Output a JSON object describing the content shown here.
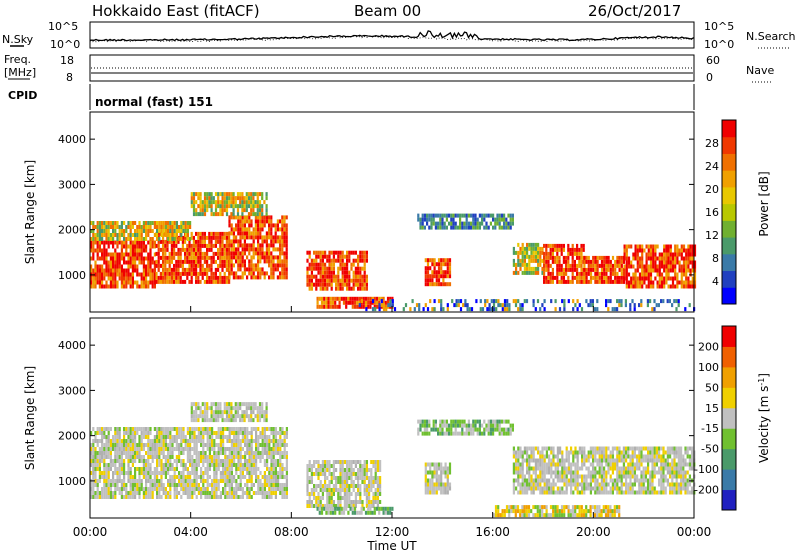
{
  "header": {
    "station": "Hokkaido East (fitACF)",
    "beam": "Beam 00",
    "date": "26/Oct/2017"
  },
  "strip": {
    "nsky_label": "N.Sky",
    "nsearch_label": "N.Search",
    "nsky_ticks": [
      "10^5",
      "10^0"
    ],
    "nsearch_ticks": [
      "10^5",
      "10^0"
    ],
    "freq_label_top": "Freq.",
    "freq_label_unit": "[MHz]",
    "freq_ticks": [
      "18",
      "8"
    ],
    "nave_label": "Nave",
    "nave_ticks": [
      "60",
      "0"
    ],
    "cpid_label": "CPID",
    "cpid_value": "normal (fast) 151"
  },
  "chart_data": [
    {
      "type": "heatmap",
      "name": "power-panel",
      "ylabel": "Slant Range [km]",
      "xlabel": "",
      "yticks": [
        1000,
        2000,
        3000,
        4000
      ],
      "ylim": [
        180,
        4600
      ],
      "x_range": [
        "00:00",
        "24:00"
      ],
      "colorbar": {
        "label": "Power [dB]",
        "ticks": [
          4,
          8,
          12,
          16,
          20,
          24,
          28
        ],
        "range": [
          0,
          32
        ],
        "colors": [
          "#0000ff",
          "#2040c0",
          "#3a7aa8",
          "#4a9a6a",
          "#70b030",
          "#b8c800",
          "#e8c800",
          "#f0a000",
          "#f07000",
          "#f03800",
          "#f00000"
        ]
      },
      "regions": [
        {
          "t0": 0.0,
          "t1": 2.6,
          "r0": 700,
          "r1": 1750,
          "level": "high"
        },
        {
          "t0": 2.6,
          "t1": 5.5,
          "r0": 800,
          "r1": 1900,
          "level": "high"
        },
        {
          "t0": 5.5,
          "t1": 7.8,
          "r0": 900,
          "r1": 2300,
          "level": "high"
        },
        {
          "t0": 0.0,
          "t1": 4.0,
          "r0": 1750,
          "r1": 2150,
          "level": "mid"
        },
        {
          "t0": 4.0,
          "t1": 7.0,
          "r0": 2300,
          "r1": 2800,
          "level": "mid"
        },
        {
          "t0": 8.6,
          "t1": 11.0,
          "r0": 650,
          "r1": 1450,
          "level": "high"
        },
        {
          "t0": 9.0,
          "t1": 12.0,
          "r0": 250,
          "r1": 450,
          "level": "high"
        },
        {
          "t0": 13.3,
          "t1": 14.3,
          "r0": 750,
          "r1": 1350,
          "level": "high"
        },
        {
          "t0": 13.0,
          "t1": 16.8,
          "r0": 2000,
          "r1": 2300,
          "level": "low"
        },
        {
          "t0": 16.8,
          "t1": 18.0,
          "r0": 1000,
          "r1": 1700,
          "level": "mid"
        },
        {
          "t0": 18.0,
          "t1": 19.6,
          "r0": 800,
          "r1": 1600,
          "level": "high"
        },
        {
          "t0": 19.6,
          "t1": 21.2,
          "r0": 800,
          "r1": 1350,
          "level": "high"
        },
        {
          "t0": 21.2,
          "t1": 24.0,
          "r0": 700,
          "r1": 1600,
          "level": "high"
        },
        {
          "t0": 10.5,
          "t1": 24.0,
          "r0": 200,
          "r1": 380,
          "level": "noise"
        }
      ]
    },
    {
      "type": "heatmap",
      "name": "velocity-panel",
      "ylabel": "Slant Range [km]",
      "xlabel": "Time UT",
      "yticks": [
        1000,
        2000,
        3000,
        4000
      ],
      "ylim": [
        180,
        4600
      ],
      "x_ticks": [
        "00:00",
        "04:00",
        "08:00",
        "12:00",
        "16:00",
        "20:00",
        "00:00"
      ],
      "colorbar": {
        "label": "Velocity [m s-1]",
        "ticks": [
          200,
          100,
          50,
          15,
          -15,
          -50,
          -100,
          -200
        ],
        "colors": [
          "#2020c0",
          "#3a7aa8",
          "#4a9a6a",
          "#70c030",
          "#c0c0c0",
          "#f0d000",
          "#f0a000",
          "#f06000",
          "#f00000"
        ]
      },
      "regions": [
        {
          "t0": 0.0,
          "t1": 7.8,
          "r0": 600,
          "r1": 2150,
          "level": "gray"
        },
        {
          "t0": 4.0,
          "t1": 7.0,
          "r0": 2300,
          "r1": 2700,
          "level": "gray"
        },
        {
          "t0": 8.6,
          "t1": 11.5,
          "r0": 400,
          "r1": 1400,
          "level": "gray"
        },
        {
          "t0": 9.0,
          "t1": 12.0,
          "r0": 250,
          "r1": 400,
          "level": "green"
        },
        {
          "t0": 13.3,
          "t1": 14.3,
          "r0": 700,
          "r1": 1350,
          "level": "gray"
        },
        {
          "t0": 13.0,
          "t1": 16.8,
          "r0": 2000,
          "r1": 2300,
          "level": "green"
        },
        {
          "t0": 16.8,
          "t1": 24.0,
          "r0": 700,
          "r1": 1700,
          "level": "gray"
        },
        {
          "t0": 16.0,
          "t1": 21.0,
          "r0": 200,
          "r1": 380,
          "level": "orange"
        }
      ]
    }
  ]
}
